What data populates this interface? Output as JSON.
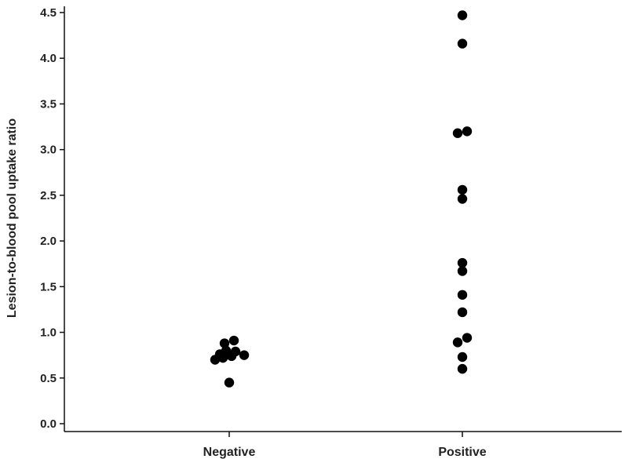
{
  "chart_data": {
    "type": "scatter",
    "title": "",
    "xlabel": "",
    "ylabel": "Lesion-to-blood pool uptake ratio",
    "categories": [
      "Negative",
      "Positive"
    ],
    "ylim": [
      0.0,
      4.5
    ],
    "yticks": [
      "0.0",
      "0.5",
      "1.0",
      "1.5",
      "2.0",
      "2.5",
      "3.0",
      "3.5",
      "4.0",
      "4.5"
    ],
    "grid": false,
    "marker_color": "#000000",
    "series": [
      {
        "category": "Negative",
        "values": [
          0.91,
          0.88,
          0.8,
          0.79,
          0.76,
          0.75,
          0.74,
          0.72,
          0.7,
          0.45
        ]
      },
      {
        "category": "Positive",
        "values": [
          4.47,
          4.16,
          3.2,
          3.18,
          2.56,
          2.46,
          1.76,
          1.67,
          1.41,
          1.22,
          0.94,
          0.89,
          0.73,
          0.6
        ]
      }
    ]
  }
}
